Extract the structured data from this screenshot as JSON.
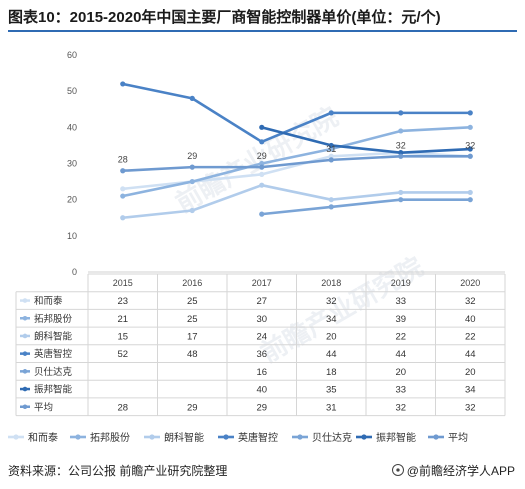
{
  "title": "图表10：2015-2020年中国主要厂商智能控制器单价(单位：元/个)",
  "source": "资料来源：公司公报 前瞻产业研究院整理",
  "brand": "@前瞻经济学人APP",
  "watermark": "前瞻产业研究院",
  "chart_data": {
    "type": "line",
    "categories": [
      "2015",
      "2016",
      "2017",
      "2018",
      "2019",
      "2020"
    ],
    "ylim": [
      0,
      60
    ],
    "yticks": [
      0,
      10,
      20,
      30,
      40,
      50,
      60
    ],
    "grid": false,
    "legend_position": "bottom",
    "data_table": true,
    "series": [
      {
        "name": "和而泰",
        "values": [
          23,
          25,
          27,
          32,
          33,
          32
        ],
        "color": "#cfe0f3"
      },
      {
        "name": "拓邦股份",
        "values": [
          21,
          25,
          30,
          34,
          39,
          40
        ],
        "color": "#8db3df"
      },
      {
        "name": "朗科智能",
        "values": [
          15,
          17,
          24,
          20,
          22,
          22
        ],
        "color": "#b1cceb"
      },
      {
        "name": "英唐智控",
        "values": [
          52,
          48,
          36,
          44,
          44,
          44
        ],
        "color": "#4a82c6"
      },
      {
        "name": "贝仕达克",
        "values": [
          null,
          null,
          16,
          18,
          20,
          20
        ],
        "color": "#7aa4d6"
      },
      {
        "name": "振邦智能",
        "values": [
          null,
          null,
          40,
          35,
          33,
          34
        ],
        "color": "#2f6bb3"
      },
      {
        "name": "平均",
        "values": [
          28,
          29,
          29,
          31,
          32,
          32
        ],
        "color": "#6f9ad0"
      }
    ],
    "labeled_series": "平均"
  }
}
